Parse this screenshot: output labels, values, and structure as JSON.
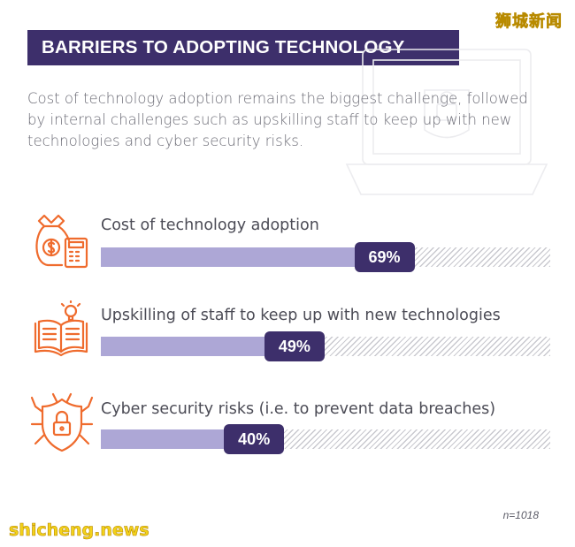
{
  "header": {
    "title": "BARRIERS TO ADOPTING TECHNOLOGY",
    "subtitle": "Cost of technology adoption remains the biggest challenge, followed by internal challenges such as upskilling staff to keep up with new technologies and cyber security risks."
  },
  "watermarks": {
    "top": "狮城新闻",
    "bottom": "shicheng.news"
  },
  "footnote": "n=1018",
  "colors": {
    "banner": "#3d2f6b",
    "bar_fill": "#ada7d6",
    "icon_orange": "#ef6b2d"
  },
  "icons": [
    "money-bag-calculator-icon",
    "open-book-lightbulb-icon",
    "shield-lock-bug-icon",
    "laptop-outline-icon"
  ],
  "chart_data": {
    "type": "bar",
    "orientation": "horizontal",
    "categories": [
      "Cost of technology adoption",
      "Upskilling of staff to keep up with new technologies",
      "Cyber security risks (i.e. to prevent data breaches)"
    ],
    "values": [
      69,
      49,
      40
    ],
    "value_labels": [
      "69%",
      "49%",
      "40%"
    ],
    "unit": "%",
    "xlim": [
      0,
      100
    ],
    "grid": false
  }
}
